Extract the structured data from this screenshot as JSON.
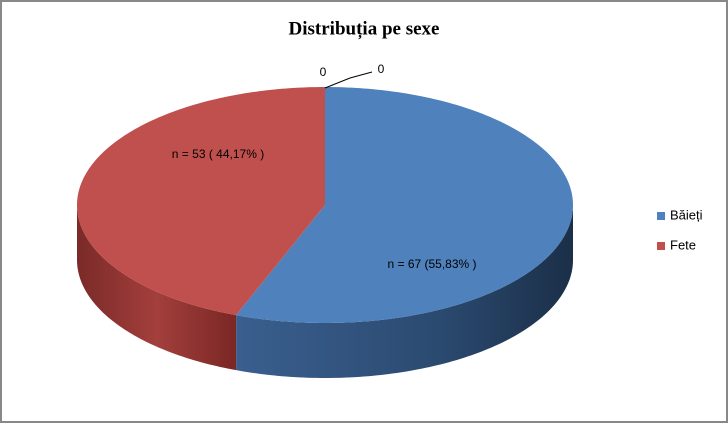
{
  "chart_data": {
    "type": "pie3d",
    "title": "Distribuția pe sexe",
    "categories": [
      "Băieți",
      "Fete",
      null,
      null
    ],
    "values": [
      67,
      53,
      0,
      0
    ],
    "value_labels": [
      "n = 67 (55,83% )",
      "n = 53 ( 44,17% )",
      "0",
      "0"
    ],
    "colors": [
      "#4f81bd",
      "#c0504d",
      "#9bbb59",
      "#8064a2"
    ],
    "legend": "right"
  }
}
